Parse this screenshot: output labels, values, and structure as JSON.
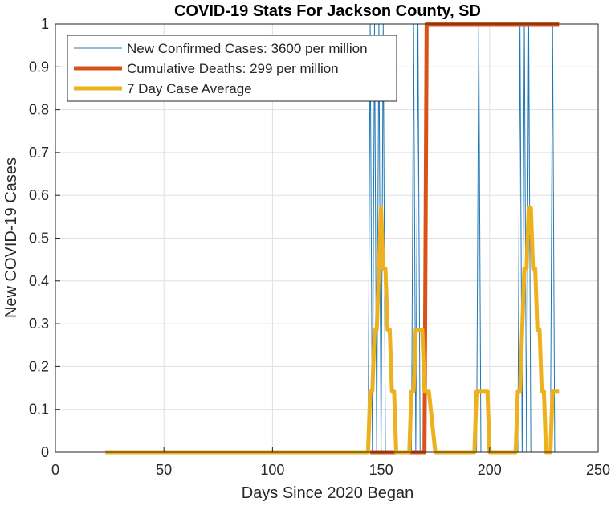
{
  "chart_data": {
    "type": "line",
    "title": "COVID-19 Stats For Jackson County, SD",
    "xlabel": "Days Since 2020 Began",
    "ylabel": "New COVID-19 Cases",
    "xlim": [
      0,
      250
    ],
    "ylim": [
      0,
      1
    ],
    "xticks": [
      "0",
      "50",
      "100",
      "150",
      "200",
      "250"
    ],
    "yticks": [
      "0",
      "0.1",
      "0.2",
      "0.3",
      "0.4",
      "0.5",
      "0.6",
      "0.7",
      "0.8",
      "0.9",
      "1"
    ],
    "grid": true,
    "legend_position": "top-left",
    "series": [
      {
        "name": "New Confirmed Cases: 3600 per million",
        "color": "#1f77b4",
        "x": [
          23,
          144,
          145,
          146,
          147,
          148,
          149,
          150,
          151,
          152,
          164,
          165,
          166,
          167,
          168,
          169,
          170,
          194,
          195,
          196,
          213,
          214,
          215,
          216,
          217,
          218,
          219,
          220,
          228,
          229,
          230,
          232
        ],
        "y": [
          0,
          0,
          1,
          0,
          1,
          0,
          1,
          0,
          1,
          0,
          0,
          1,
          0,
          1,
          0,
          0,
          0,
          0,
          1,
          0,
          0,
          1,
          0,
          1,
          0,
          1,
          0,
          0,
          0,
          1,
          0,
          0
        ]
      },
      {
        "name": "Cumulative Deaths: 299 per million",
        "color": "#d95319",
        "x": [
          145,
          158,
          170,
          171,
          232
        ],
        "y": [
          0,
          0,
          0,
          1,
          1
        ]
      },
      {
        "name": "7 Day Case Average",
        "color": "#edb120",
        "x": [
          23,
          144,
          145,
          146,
          147,
          148,
          149,
          150,
          151,
          152,
          153,
          154,
          155,
          156,
          157,
          158,
          163,
          164,
          165,
          166,
          167,
          168,
          169,
          170,
          171,
          172,
          175,
          193,
          194,
          195,
          196,
          197,
          198,
          199,
          200,
          201,
          212,
          213,
          214,
          215,
          216,
          217,
          218,
          219,
          220,
          221,
          222,
          223,
          224,
          225,
          226,
          227,
          228,
          229,
          230,
          232
        ],
        "y": [
          0,
          0,
          0.143,
          0.143,
          0.286,
          0.286,
          0.429,
          0.571,
          0.429,
          0.429,
          0.286,
          0.286,
          0.143,
          0.143,
          0,
          0,
          0,
          0.143,
          0.143,
          0.286,
          0.286,
          0.286,
          0.286,
          0.143,
          0.143,
          0.143,
          0,
          0,
          0.143,
          0.143,
          0.143,
          0.143,
          0.143,
          0.143,
          0,
          0,
          0,
          0.143,
          0.143,
          0.286,
          0.429,
          0.429,
          0.571,
          0.571,
          0.429,
          0.429,
          0.286,
          0.286,
          0.143,
          0.143,
          0,
          0,
          0,
          0.143,
          0.143,
          0.143
        ]
      }
    ]
  }
}
